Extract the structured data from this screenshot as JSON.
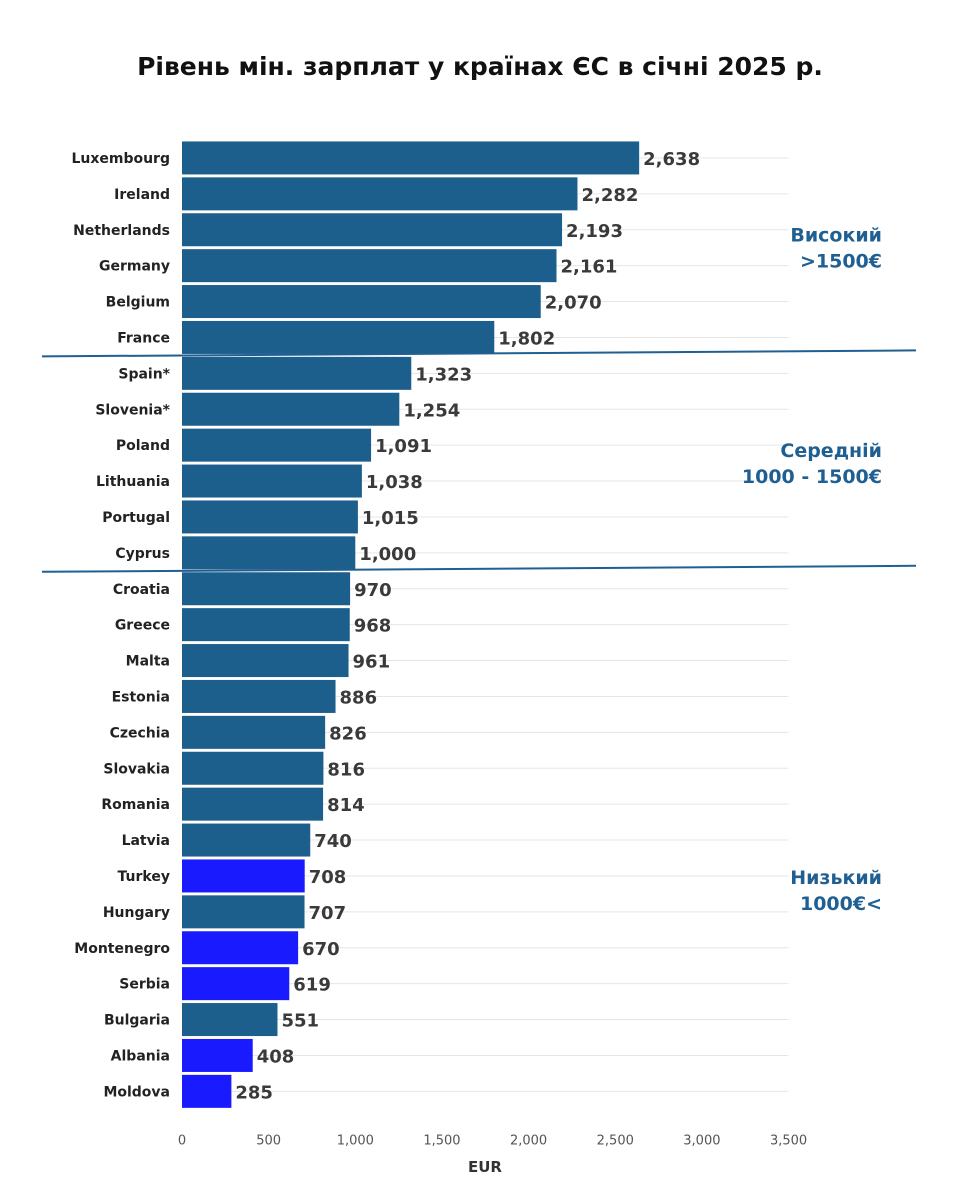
{
  "chart_data": {
    "type": "bar",
    "orientation": "horizontal",
    "title": "Рівень мін. зарплат у країнах ЄС в січні 2025 р.",
    "xlabel": "EUR",
    "ylabel": "",
    "xlim": [
      0,
      3500
    ],
    "ticks": [
      0,
      500,
      1000,
      1500,
      2000,
      2500,
      3000,
      3500
    ],
    "tick_labels": [
      "0",
      "500",
      "1,000",
      "1,500",
      "2,000",
      "2,500",
      "3,000",
      "3,500"
    ],
    "grid": true,
    "categories": [
      "Luxembourg",
      "Ireland",
      "Netherlands",
      "Germany",
      "Belgium",
      "France",
      "Spain*",
      "Slovenia*",
      "Poland",
      "Lithuania",
      "Portugal",
      "Cyprus",
      "Croatia",
      "Greece",
      "Malta",
      "Estonia",
      "Czechia",
      "Slovakia",
      "Romania",
      "Latvia",
      "Turkey",
      "Hungary",
      "Montenegro",
      "Serbia",
      "Bulgaria",
      "Albania",
      "Moldova"
    ],
    "values": [
      2638,
      2282,
      2193,
      2161,
      2070,
      1802,
      1323,
      1254,
      1091,
      1038,
      1015,
      1000,
      970,
      968,
      961,
      886,
      826,
      816,
      814,
      740,
      708,
      707,
      670,
      619,
      551,
      408,
      285
    ],
    "value_labels": [
      "2,638",
      "2,282",
      "2,193",
      "2,161",
      "2,070",
      "1,802",
      "1,323",
      "1,254",
      "1,091",
      "1,038",
      "1,015",
      "1,000",
      "970",
      "968",
      "961",
      "886",
      "826",
      "816",
      "814",
      "740",
      "708",
      "707",
      "670",
      "619",
      "551",
      "408",
      "285"
    ],
    "colors": [
      "#1d5f8c",
      "#1d5f8c",
      "#1d5f8c",
      "#1d5f8c",
      "#1d5f8c",
      "#1d5f8c",
      "#1d5f8c",
      "#1d5f8c",
      "#1d5f8c",
      "#1d5f8c",
      "#1d5f8c",
      "#1d5f8c",
      "#1d5f8c",
      "#1d5f8c",
      "#1d5f8c",
      "#1d5f8c",
      "#1d5f8c",
      "#1d5f8c",
      "#1d5f8c",
      "#1d5f8c",
      "#1a1aff",
      "#1d5f8c",
      "#1a1aff",
      "#1a1aff",
      "#1d5f8c",
      "#1a1aff",
      "#1a1aff"
    ],
    "bands": [
      {
        "line1": "Високий",
        "line2": ">1500€",
        "first_index": 0,
        "last_index": 5
      },
      {
        "line1": "Середній",
        "line2": "1000 - 1500€",
        "first_index": 6,
        "last_index": 11
      },
      {
        "line1": "Низький",
        "line2": "1000€<",
        "first_index": 12,
        "last_index": 26
      }
    ],
    "band_color": "#1f5f91"
  }
}
